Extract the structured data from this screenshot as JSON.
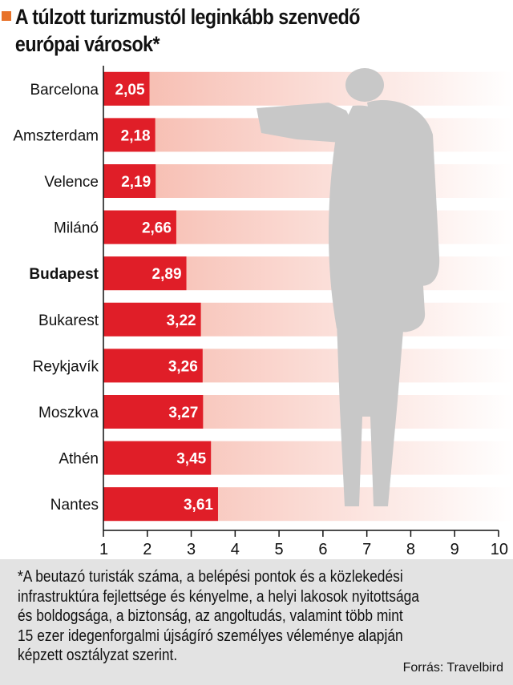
{
  "header": {
    "title_line1": "A túlzott turizmustól leginkább szenvedő",
    "title_line2": "európai városok*"
  },
  "chart_data": {
    "type": "bar",
    "orientation": "horizontal",
    "title": "A túlzott turizmustól leginkább szenvedő európai városok*",
    "categories": [
      "Barcelona",
      "Amszterdam",
      "Velence",
      "Milánó",
      "Budapest",
      "Bukarest",
      "Reykjavík",
      "Moszkva",
      "Athén",
      "Nantes"
    ],
    "values": [
      2.05,
      2.18,
      2.19,
      2.66,
      2.89,
      3.22,
      3.26,
      3.27,
      3.45,
      3.61
    ],
    "value_labels": [
      "2,05",
      "2,18",
      "2,19",
      "2,66",
      "2,89",
      "3,22",
      "3,26",
      "3,27",
      "3,45",
      "3,61"
    ],
    "highlighted_category": "Budapest",
    "xlim": [
      1,
      10
    ],
    "x_ticks": [
      "1",
      "2",
      "3",
      "4",
      "5",
      "6",
      "7",
      "8",
      "9",
      "10"
    ],
    "xlabel": "",
    "ylabel": "",
    "grid": false,
    "legend": "none",
    "colors": {
      "bar": "#e01e28",
      "band_start": "#f6b7aa",
      "band_end": "#ffffff",
      "silhouette": "#c8c8c8"
    }
  },
  "decor": {
    "silhouette_icon": "tourist-photographer-silhouette-icon"
  },
  "footnote": {
    "line1": "*A beutazó turisták száma, a belépési pontok és a közlekedési",
    "line2": "infrastruktúra fejlettsége és kényelme, a helyi lakosok nyitottsága",
    "line3": "és boldogsága, a biztonság, az angoltudás, valamint több mint",
    "line4": "15 ezer idegenforgalmi újságíró személyes véleménye alapján",
    "line5": "képzett osztályzat szerint.",
    "source": "Forrás: Travelbird"
  }
}
